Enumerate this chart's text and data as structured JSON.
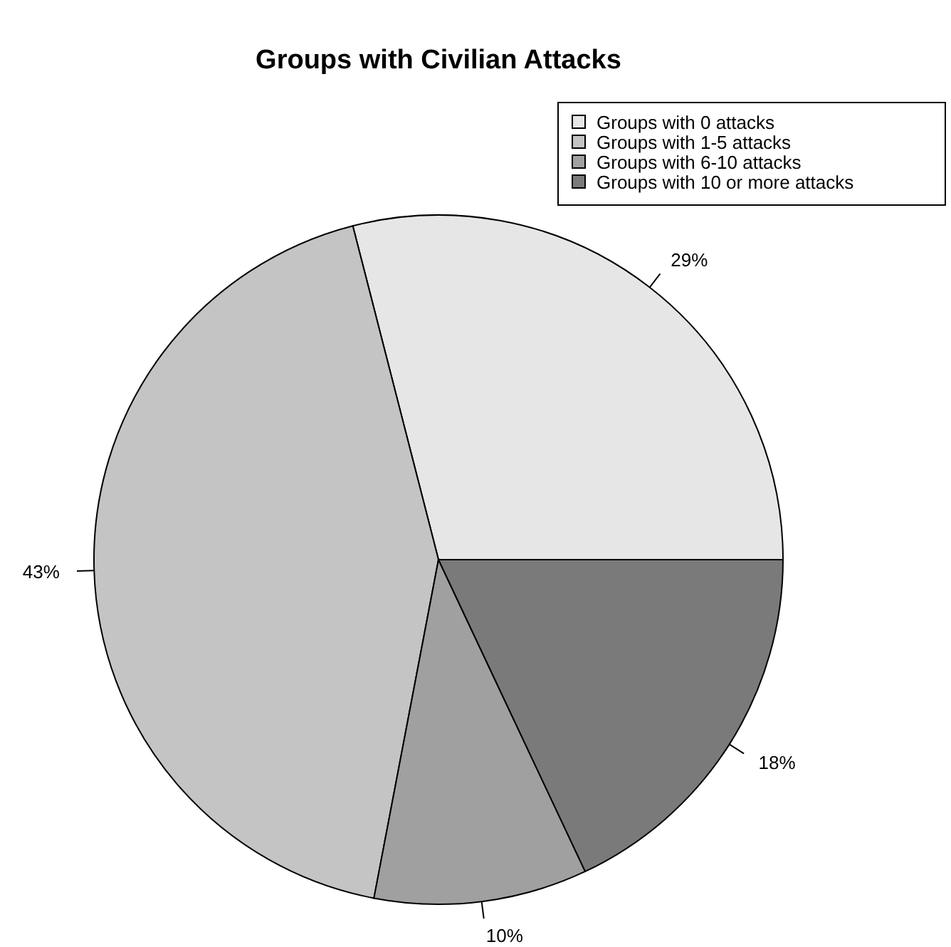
{
  "chart_data": {
    "type": "pie",
    "title": "Groups with Civilian Attacks",
    "categories": [
      "Groups with 0 attacks",
      "Groups with 1-5 attacks",
      "Groups with 6-10 attacks",
      "Groups with 10 or more attacks"
    ],
    "values": [
      29,
      43,
      10,
      18
    ],
    "colors": [
      "#e6e6e6",
      "#c4c4c4",
      "#a0a0a0",
      "#7a7a7a"
    ],
    "value_labels": [
      "29%",
      "43%",
      "10%",
      "18%"
    ],
    "legend": "top right"
  }
}
